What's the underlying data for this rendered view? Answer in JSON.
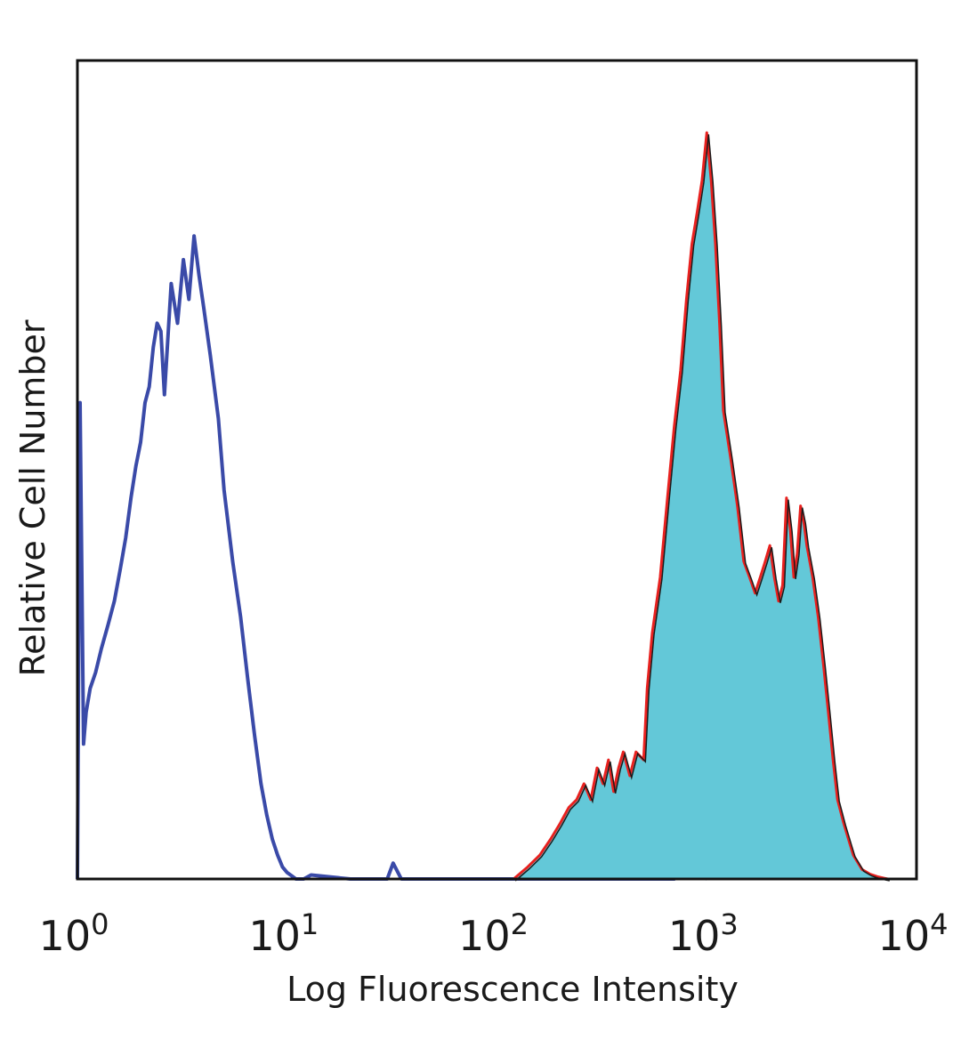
{
  "chart_data": {
    "type": "area",
    "title": "",
    "xlabel": "Log Fluorescence Intensity",
    "ylabel": "Relative Cell Number",
    "x_scale": "log",
    "xlim": [
      1,
      10000
    ],
    "ylim": [
      0,
      1
    ],
    "grid": false,
    "legend": "none",
    "x_ticks": [
      {
        "value": 1,
        "base": "10",
        "exp": "0"
      },
      {
        "value": 10,
        "base": "10",
        "exp": "1"
      },
      {
        "value": 100,
        "base": "10",
        "exp": "2"
      },
      {
        "value": 1000,
        "base": "10",
        "exp": "3"
      },
      {
        "value": 10000,
        "base": "10",
        "exp": "4"
      }
    ],
    "series": [
      {
        "style": "outline",
        "color": "#3a4aa8",
        "x": [
          1.0,
          1.03,
          1.07,
          1.1,
          1.15,
          1.22,
          1.3,
          1.4,
          1.5,
          1.6,
          1.7,
          1.8,
          1.9,
          2.0,
          2.1,
          2.2,
          2.3,
          2.4,
          2.5,
          2.6,
          2.8,
          3.0,
          3.2,
          3.4,
          3.6,
          3.8,
          4.0,
          4.3,
          4.7,
          5.0,
          5.5,
          6.0,
          6.5,
          7.0,
          7.5,
          8.0,
          8.5,
          9.0,
          9.5,
          10.0,
          10.5,
          11.0,
          12.0,
          13.0,
          20.0,
          30.0,
          32.0,
          35.0,
          60.0,
          100,
          200,
          700,
          800,
          1000
        ],
        "y": [
          0.0,
          0.6,
          0.17,
          0.21,
          0.24,
          0.26,
          0.29,
          0.32,
          0.35,
          0.39,
          0.43,
          0.48,
          0.52,
          0.55,
          0.6,
          0.62,
          0.67,
          0.7,
          0.69,
          0.61,
          0.75,
          0.7,
          0.78,
          0.73,
          0.81,
          0.76,
          0.72,
          0.66,
          0.58,
          0.49,
          0.4,
          0.33,
          0.25,
          0.18,
          0.12,
          0.08,
          0.05,
          0.03,
          0.015,
          0.008,
          0.004,
          0.0,
          0.0,
          0.005,
          0.0,
          0.0,
          0.02,
          0.0,
          0.0,
          0.0,
          0.0,
          0.0,
          0.012,
          0.0
        ]
      },
      {
        "style": "filled",
        "color": "#63c8d8",
        "outline_color": "#e8211f",
        "x": [
          120,
          140,
          160,
          180,
          200,
          220,
          240,
          260,
          280,
          300,
          320,
          340,
          360,
          380,
          400,
          430,
          460,
          500,
          520,
          550,
          600,
          650,
          700,
          750,
          800,
          850,
          900,
          950,
          1000,
          1050,
          1100,
          1150,
          1200,
          1300,
          1400,
          1500,
          1600,
          1700,
          1800,
          1900,
          2000,
          2100,
          2200,
          2300,
          2400,
          2500,
          2600,
          2700,
          2800,
          2900,
          3000,
          3200,
          3400,
          3600,
          3800,
          4000,
          4200,
          4500,
          4800,
          5000,
          5500,
          6000,
          6500,
          7000,
          7300
        ],
        "y": [
          0.0,
          0.015,
          0.03,
          0.05,
          0.07,
          0.09,
          0.1,
          0.12,
          0.1,
          0.14,
          0.12,
          0.15,
          0.11,
          0.14,
          0.16,
          0.13,
          0.16,
          0.15,
          0.24,
          0.31,
          0.38,
          0.48,
          0.57,
          0.64,
          0.73,
          0.8,
          0.84,
          0.88,
          0.94,
          0.88,
          0.8,
          0.7,
          0.59,
          0.53,
          0.47,
          0.4,
          0.38,
          0.36,
          0.38,
          0.4,
          0.42,
          0.38,
          0.35,
          0.37,
          0.48,
          0.44,
          0.38,
          0.41,
          0.47,
          0.45,
          0.42,
          0.38,
          0.33,
          0.27,
          0.21,
          0.15,
          0.1,
          0.07,
          0.045,
          0.03,
          0.012,
          0.006,
          0.003,
          0.001,
          0.0
        ]
      }
    ]
  }
}
